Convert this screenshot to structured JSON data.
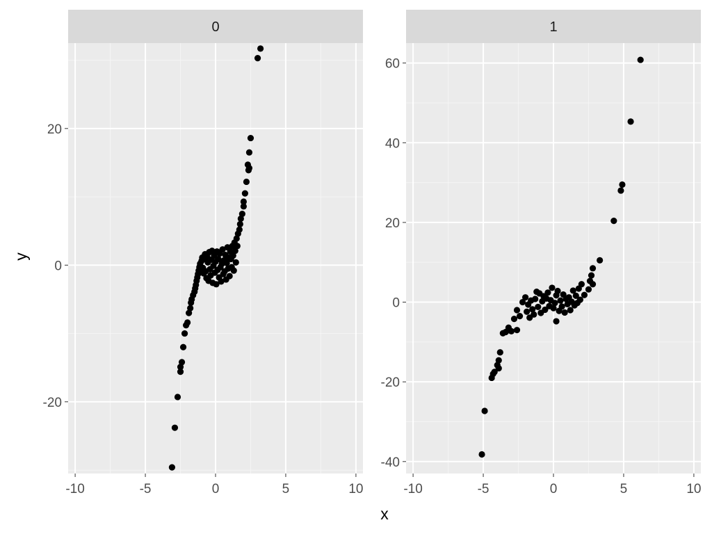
{
  "chart_data": {
    "type": "scatter",
    "facet_layout": "1 row x 2 columns, free y scales, shared x scale",
    "xlabel": "x",
    "ylabel": "y",
    "xlim": [
      -10.5,
      10.5
    ],
    "x_ticks": [
      -10,
      -5,
      0,
      5,
      10
    ],
    "x_tick_labels": [
      "-10",
      "-5",
      "0",
      "5",
      "10"
    ],
    "grid": true,
    "legend": "none",
    "colors": {
      "panel_background": "#ebebeb",
      "grid_major": "#ffffff",
      "grid_minor": "#f5f5f5",
      "strip_background": "#d9d9d9",
      "point": "#000000",
      "tick_text": "#4d4d4d"
    },
    "panels": [
      {
        "strip_label": "0",
        "ylim": [
          -30.5,
          32.5
        ],
        "y_ticks": [
          -20,
          0,
          20
        ],
        "y_tick_labels": [
          "-20",
          "0",
          "20"
        ],
        "y_minor_ticks": [
          -30,
          -10,
          10,
          30
        ],
        "points": [
          [
            -3.1,
            -29.6
          ],
          [
            -2.9,
            -23.8
          ],
          [
            -2.7,
            -19.3
          ],
          [
            -2.5,
            -15.6
          ],
          [
            -2.5,
            -14.9
          ],
          [
            -2.4,
            -14.2
          ],
          [
            -2.3,
            -12.0
          ],
          [
            -2.2,
            -10.0
          ],
          [
            -2.1,
            -8.8
          ],
          [
            -2.0,
            -8.4
          ],
          [
            -1.9,
            -7.0
          ],
          [
            -1.8,
            -6.3
          ],
          [
            -1.75,
            -5.5
          ],
          [
            -1.7,
            -5.0
          ],
          [
            -1.6,
            -4.4
          ],
          [
            -1.5,
            -3.9
          ],
          [
            -1.45,
            -3.4
          ],
          [
            -1.4,
            -2.9
          ],
          [
            -1.35,
            -2.3
          ],
          [
            -1.3,
            -1.8
          ],
          [
            -1.25,
            -1.3
          ],
          [
            -1.2,
            -0.8
          ],
          [
            -1.15,
            -0.3
          ],
          [
            -1.1,
            0.2
          ],
          [
            -1.0,
            0.6
          ],
          [
            -0.95,
            1.1
          ],
          [
            -0.9,
            -0.4
          ],
          [
            -0.85,
            -1.2
          ],
          [
            -0.8,
            0.9
          ],
          [
            -0.75,
            1.6
          ],
          [
            -0.7,
            -0.9
          ],
          [
            -0.65,
            -1.9
          ],
          [
            -0.6,
            1.3
          ],
          [
            -0.55,
            0.4
          ],
          [
            -0.5,
            -2.3
          ],
          [
            -0.45,
            1.9
          ],
          [
            -0.4,
            -0.6
          ],
          [
            -0.35,
            -1.5
          ],
          [
            -0.3,
            0.8
          ],
          [
            -0.25,
            2.1
          ],
          [
            -0.2,
            -2.6
          ],
          [
            -0.15,
            -0.1
          ],
          [
            -0.1,
            1.4
          ],
          [
            -0.05,
            -1.1
          ],
          [
            0.0,
            0.5
          ],
          [
            0.05,
            -2.8
          ],
          [
            0.1,
            2.0
          ],
          [
            0.15,
            -0.7
          ],
          [
            0.2,
            0.9
          ],
          [
            0.25,
            -1.8
          ],
          [
            0.3,
            1.7
          ],
          [
            0.35,
            -0.3
          ],
          [
            0.4,
            -2.4
          ],
          [
            0.45,
            0.2
          ],
          [
            0.5,
            2.3
          ],
          [
            0.55,
            -1.3
          ],
          [
            0.6,
            0.7
          ],
          [
            0.65,
            -0.9
          ],
          [
            0.7,
            1.5
          ],
          [
            0.75,
            -2.1
          ],
          [
            0.8,
            0.3
          ],
          [
            0.85,
            2.6
          ],
          [
            0.9,
            -0.5
          ],
          [
            0.95,
            1.1
          ],
          [
            1.0,
            -1.6
          ],
          [
            1.05,
            2.0
          ],
          [
            1.1,
            0.9
          ],
          [
            1.15,
            -0.3
          ],
          [
            1.2,
            2.8
          ],
          [
            1.25,
            1.4
          ],
          [
            1.3,
            -0.8
          ],
          [
            1.35,
            3.3
          ],
          [
            1.4,
            2.1
          ],
          [
            1.45,
            0.4
          ],
          [
            1.5,
            3.9
          ],
          [
            1.55,
            2.8
          ],
          [
            1.6,
            4.6
          ],
          [
            1.7,
            5.2
          ],
          [
            1.75,
            6.0
          ],
          [
            1.8,
            6.8
          ],
          [
            1.9,
            7.5
          ],
          [
            2.0,
            8.6
          ],
          [
            2.0,
            9.3
          ],
          [
            2.1,
            10.5
          ],
          [
            2.2,
            12.2
          ],
          [
            2.3,
            14.7
          ],
          [
            2.35,
            13.9
          ],
          [
            2.4,
            14.2
          ],
          [
            2.4,
            16.5
          ],
          [
            2.5,
            18.6
          ],
          [
            3.0,
            30.3
          ],
          [
            3.2,
            31.7
          ]
        ]
      },
      {
        "strip_label": "1",
        "ylim": [
          -43,
          65
        ],
        "y_ticks": [
          -40,
          -20,
          0,
          20,
          40,
          60
        ],
        "y_tick_labels": [
          "-40",
          "-20",
          "0",
          "20",
          "40",
          "60"
        ],
        "y_minor_ticks": [
          -30,
          -10,
          10,
          30,
          50
        ],
        "points": [
          [
            -5.1,
            -38.2
          ],
          [
            -4.9,
            -27.3
          ],
          [
            -4.4,
            -19.0
          ],
          [
            -4.3,
            -18.0
          ],
          [
            -4.2,
            -17.5
          ],
          [
            -4.0,
            -15.8
          ],
          [
            -3.9,
            -14.6
          ],
          [
            -3.8,
            -12.6
          ],
          [
            -3.9,
            -16.6
          ],
          [
            -3.6,
            -7.8
          ],
          [
            -3.4,
            -7.5
          ],
          [
            -3.2,
            -6.4
          ],
          [
            -3.0,
            -7.3
          ],
          [
            -2.8,
            -4.2
          ],
          [
            -2.6,
            -7.0
          ],
          [
            -2.6,
            -2.0
          ],
          [
            -2.4,
            -3.5
          ],
          [
            -2.2,
            0.0
          ],
          [
            -2.0,
            1.2
          ],
          [
            -1.9,
            -2.4
          ],
          [
            -1.8,
            -0.6
          ],
          [
            -1.7,
            -3.9
          ],
          [
            -1.6,
            0.4
          ],
          [
            -1.5,
            -1.8
          ],
          [
            -1.4,
            -3.1
          ],
          [
            -1.3,
            0.8
          ],
          [
            -1.2,
            2.6
          ],
          [
            -1.1,
            -1.2
          ],
          [
            -1.0,
            2.2
          ],
          [
            -0.9,
            -2.7
          ],
          [
            -0.8,
            0.2
          ],
          [
            -0.7,
            1.5
          ],
          [
            -0.6,
            -1.9
          ],
          [
            -0.5,
            0.9
          ],
          [
            -0.4,
            2.4
          ],
          [
            -0.3,
            -1.0
          ],
          [
            -0.2,
            0.5
          ],
          [
            -0.1,
            3.6
          ],
          [
            0.0,
            -1.5
          ],
          [
            0.1,
            -0.2
          ],
          [
            0.2,
            1.7
          ],
          [
            0.2,
            -4.8
          ],
          [
            0.3,
            2.8
          ],
          [
            0.4,
            -2.2
          ],
          [
            0.5,
            0.4
          ],
          [
            0.6,
            -1.1
          ],
          [
            0.7,
            1.9
          ],
          [
            0.8,
            -2.6
          ],
          [
            0.9,
            0.8
          ],
          [
            1.0,
            -0.5
          ],
          [
            1.1,
            1.2
          ],
          [
            1.2,
            -2.0
          ],
          [
            1.3,
            0.1
          ],
          [
            1.4,
            2.9
          ],
          [
            1.5,
            -0.8
          ],
          [
            1.6,
            1.6
          ],
          [
            1.7,
            -0.2
          ],
          [
            1.8,
            3.4
          ],
          [
            1.9,
            0.6
          ],
          [
            2.0,
            4.5
          ],
          [
            2.2,
            1.8
          ],
          [
            2.5,
            3.2
          ],
          [
            2.6,
            5.3
          ],
          [
            2.7,
            6.7
          ],
          [
            2.8,
            4.5
          ],
          [
            2.8,
            8.5
          ],
          [
            3.3,
            10.5
          ],
          [
            4.3,
            20.4
          ],
          [
            4.8,
            28.0
          ],
          [
            4.9,
            29.5
          ],
          [
            5.5,
            45.3
          ],
          [
            6.2,
            60.8
          ]
        ]
      }
    ]
  }
}
